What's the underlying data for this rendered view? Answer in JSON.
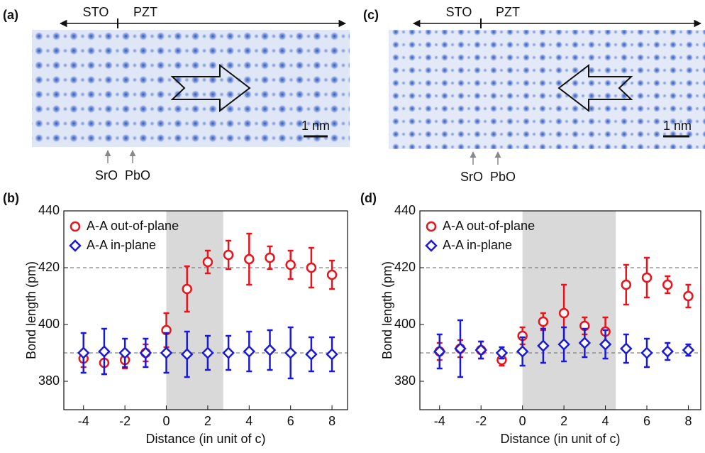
{
  "images": [
    {
      "panel": "(a)",
      "left_label": "STO",
      "right_label": "PZT",
      "layers": [
        "SrO",
        "PbO"
      ],
      "scale": "1 nm"
    },
    {
      "panel": "(c)",
      "left_label": "STO",
      "right_label": "PZT",
      "layers": [
        "SrO",
        "PbO"
      ],
      "scale": "1 nm"
    }
  ],
  "chart_data": [
    {
      "type": "scatter",
      "panel": "(b)",
      "x_label": "Distance (in unit of c)",
      "y_label": "Bond length (pm)",
      "xlim": [
        -4.95,
        8.75
      ],
      "ylim": [
        370,
        440
      ],
      "xticks": [
        -4,
        -2,
        0,
        2,
        4,
        6,
        8
      ],
      "yticks": [
        380,
        400,
        420,
        440
      ],
      "shade_x": [
        0,
        2.75
      ],
      "hlines": [
        420,
        390
      ],
      "x": [
        -4,
        -3,
        -2,
        -1,
        0,
        1,
        2,
        3,
        4,
        5,
        6,
        7,
        8
      ],
      "series": [
        {
          "name": "A-A out-of-plane",
          "color": "#e8141b",
          "marker": "circle",
          "values": [
            388,
            386.5,
            387.5,
            390,
            398,
            412.5,
            422,
            424.5,
            423,
            423.5,
            421,
            420,
            417.5
          ],
          "errors": [
            3,
            4,
            3,
            3,
            6,
            8,
            4,
            5,
            9,
            4,
            5,
            7,
            5
          ]
        },
        {
          "name": "A-A in-plane",
          "color": "#1a1ad6",
          "marker": "diamond",
          "values": [
            390,
            390.5,
            390,
            390,
            390,
            389.5,
            390,
            390,
            390.5,
            391,
            390,
            389.5,
            389.5
          ],
          "errors": [
            7,
            8,
            5,
            5,
            7,
            8,
            6,
            6,
            7,
            7,
            9,
            6,
            6
          ]
        }
      ]
    },
    {
      "type": "scatter",
      "panel": "(d)",
      "x_label": "Distance (in unit of c)",
      "y_label": "Bond length (pm)",
      "xlim": [
        -4.95,
        8.6
      ],
      "ylim": [
        370,
        440
      ],
      "xticks": [
        -4,
        -2,
        0,
        2,
        4,
        6,
        8
      ],
      "yticks": [
        380,
        400,
        420,
        440
      ],
      "shade_x": [
        0,
        4.5
      ],
      "hlines": [
        420,
        390
      ],
      "x": [
        -4,
        -3,
        -2,
        -1,
        0,
        1,
        2,
        3,
        4,
        5,
        6,
        7,
        8
      ],
      "series": [
        {
          "name": "A-A out-of-plane",
          "color": "#e8141b",
          "marker": "circle",
          "values": [
            390.5,
            391.5,
            391,
            387.5,
            396,
            401,
            404,
            399.5,
            397.5,
            414,
            416.5,
            414,
            410
          ],
          "errors": [
            3,
            3,
            3,
            2,
            3,
            3,
            10,
            3,
            5,
            7,
            7,
            3,
            4
          ]
        },
        {
          "name": "A-A in-plane",
          "color": "#1a1ad6",
          "marker": "diamond",
          "values": [
            390.5,
            391.5,
            391,
            390,
            390.5,
            392.5,
            393,
            393.5,
            393,
            391.5,
            390,
            390.5,
            391
          ],
          "errors": [
            6,
            10,
            3,
            2,
            5,
            6,
            6,
            5,
            5,
            5,
            5,
            3,
            2
          ]
        }
      ]
    }
  ]
}
